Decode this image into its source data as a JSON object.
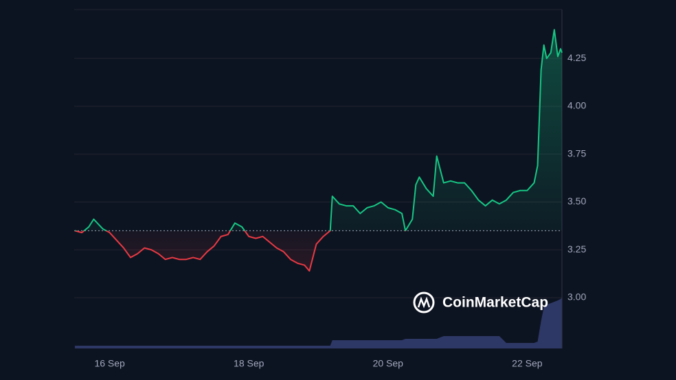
{
  "chart_data": {
    "type": "line",
    "x": [
      15.5,
      15.6,
      15.7,
      15.77,
      15.9,
      16.0,
      16.1,
      16.2,
      16.3,
      16.4,
      16.5,
      16.6,
      16.7,
      16.8,
      16.9,
      17.0,
      17.1,
      17.2,
      17.3,
      17.4,
      17.5,
      17.6,
      17.7,
      17.8,
      17.9,
      18.0,
      18.1,
      18.2,
      18.3,
      18.4,
      18.5,
      18.6,
      18.7,
      18.8,
      18.87,
      18.97,
      19.07,
      19.17,
      19.2,
      19.3,
      19.4,
      19.5,
      19.6,
      19.7,
      19.8,
      19.9,
      20.0,
      20.1,
      20.2,
      20.25,
      20.35,
      20.4,
      20.45,
      20.55,
      20.65,
      20.7,
      20.8,
      20.9,
      21.0,
      21.1,
      21.2,
      21.3,
      21.4,
      21.5,
      21.6,
      21.7,
      21.8,
      21.9,
      22.0,
      22.1,
      22.15,
      22.2,
      22.24,
      22.28,
      22.34,
      22.39,
      22.44,
      22.48,
      22.5
    ],
    "values": [
      3.35,
      3.34,
      3.37,
      3.41,
      3.36,
      3.34,
      3.3,
      3.26,
      3.21,
      3.23,
      3.26,
      3.25,
      3.23,
      3.2,
      3.21,
      3.2,
      3.2,
      3.21,
      3.2,
      3.24,
      3.27,
      3.32,
      3.33,
      3.39,
      3.37,
      3.32,
      3.31,
      3.32,
      3.29,
      3.26,
      3.24,
      3.2,
      3.18,
      3.17,
      3.14,
      3.28,
      3.32,
      3.35,
      3.53,
      3.49,
      3.48,
      3.48,
      3.44,
      3.47,
      3.48,
      3.5,
      3.47,
      3.46,
      3.44,
      3.35,
      3.41,
      3.59,
      3.63,
      3.57,
      3.53,
      3.74,
      3.6,
      3.61,
      3.6,
      3.6,
      3.56,
      3.51,
      3.48,
      3.51,
      3.49,
      3.51,
      3.55,
      3.56,
      3.56,
      3.6,
      3.69,
      4.19,
      4.32,
      4.25,
      4.28,
      4.4,
      4.26,
      4.3,
      4.28
    ],
    "baseline": 3.35,
    "up_color": "#16c784",
    "down_color": "#ea3943",
    "volume": {
      "color": "#2e3866",
      "vlim": [
        0,
        100
      ],
      "values": [
        4,
        4,
        4,
        4,
        4,
        4,
        4,
        4,
        4,
        4,
        4,
        4,
        4,
        4,
        4,
        4,
        4,
        4,
        4,
        4,
        4,
        4,
        4,
        4,
        4,
        4,
        4,
        4,
        4,
        4,
        4,
        4,
        4,
        4,
        4,
        4,
        4,
        4,
        12,
        12,
        12,
        12,
        12,
        12,
        12,
        12,
        12,
        12,
        12,
        14,
        14,
        14,
        14,
        14,
        14,
        14,
        18,
        18,
        18,
        18,
        18,
        18,
        18,
        18,
        18,
        8,
        8,
        8,
        8,
        8,
        10,
        40,
        60,
        64,
        66,
        68,
        70,
        72,
        74
      ]
    },
    "xlim": [
      15.49,
      22.5
    ],
    "xticks": [
      {
        "value": 16,
        "label": "16 Sep"
      },
      {
        "value": 18,
        "label": "18 Sep"
      },
      {
        "value": 20,
        "label": "20 Sep"
      },
      {
        "value": 22,
        "label": "22 Sep"
      }
    ],
    "ylim": [
      2.735,
      4.505
    ],
    "yticks": [
      {
        "value": 3,
        "label": "3.00"
      },
      3.25,
      {
        "value": 3.5,
        "label": "3.50"
      },
      3.75,
      {
        "value": 4,
        "label": "4.00"
      },
      4.25
    ],
    "grid": true,
    "watermark": "CoinMarketCap"
  }
}
